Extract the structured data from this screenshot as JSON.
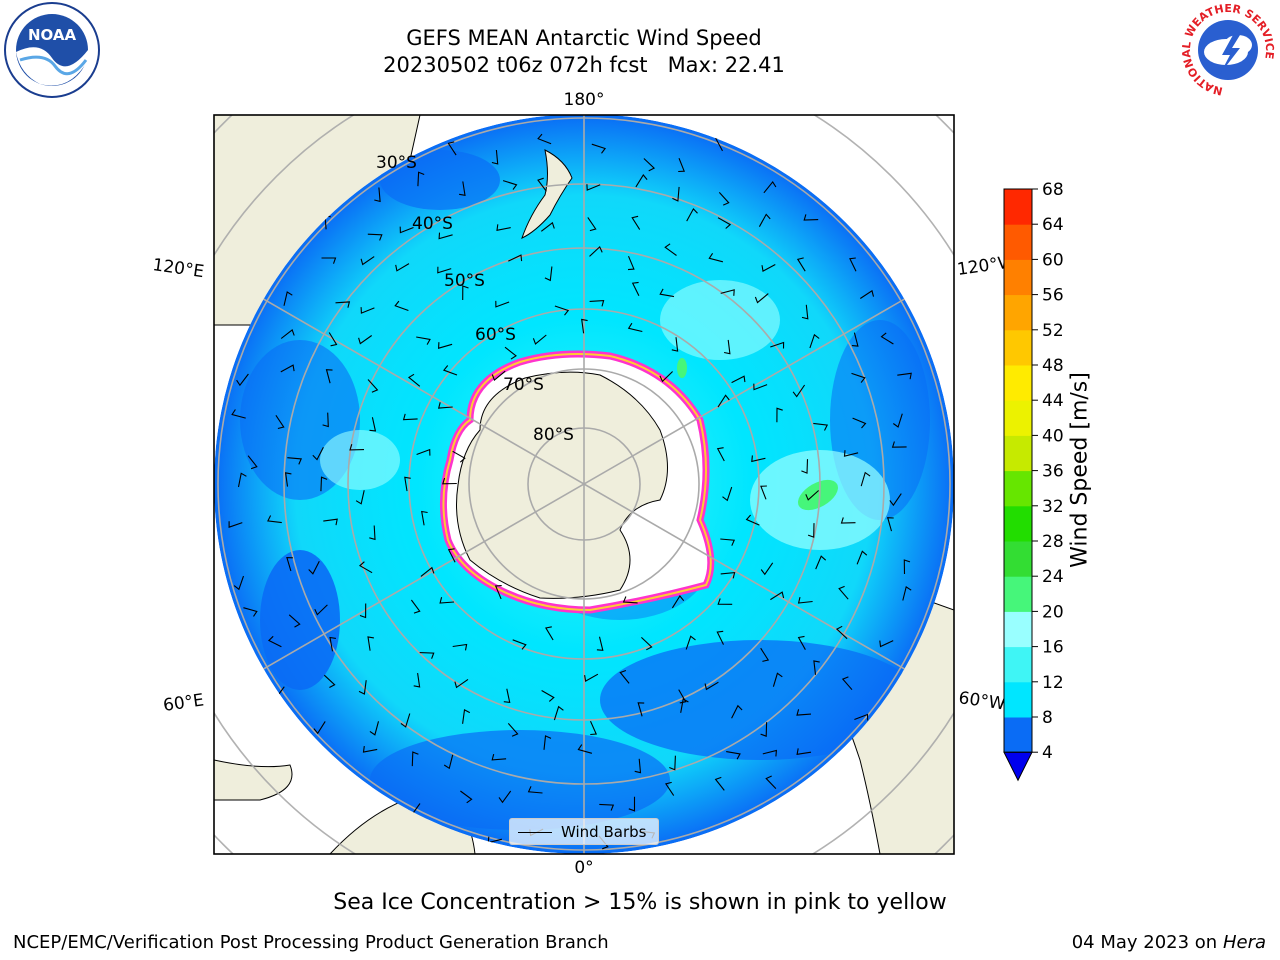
{
  "title": {
    "line1": "GEFS MEAN Antarctic Wind Speed",
    "line2": "20230502 t06z 072h fcst   Max: 22.41"
  },
  "map": {
    "projection": "south-polar-stereographic",
    "lat_labels": [
      "30°S",
      "40°S",
      "50°S",
      "60°S",
      "70°S",
      "80°S"
    ],
    "lon_labels": {
      "top": "180°",
      "bottom": "0°",
      "upper_left": "120°E",
      "upper_right": "120°W",
      "lower_left": "60°E",
      "lower_right": "60°W"
    },
    "colors": {
      "ocean_low": "#0a6cf5",
      "ocean_mid": "#00e6ff",
      "ocean_high": "#4dfafa",
      "land": "#efeedc",
      "sea_ice_edge": "#ff33cc",
      "sea_ice_inner": "#ffcc33"
    }
  },
  "legend": {
    "label": "Wind Barbs"
  },
  "colorbar": {
    "label": "Wind Speed [m/s]",
    "ticks": [
      "4",
      "8",
      "12",
      "16",
      "20",
      "24",
      "28",
      "32",
      "36",
      "40",
      "44",
      "48",
      "52",
      "56",
      "60",
      "64",
      "68"
    ],
    "colors": [
      "#0a6cf5",
      "#00e6ff",
      "#3ff5f5",
      "#99ffff",
      "#46f67a",
      "#33dd33",
      "#22dd00",
      "#66e600",
      "#c6ea00",
      "#ecf200",
      "#ffeb00",
      "#ffc800",
      "#ffa500",
      "#ff8000",
      "#ff5a00",
      "#ff2800"
    ],
    "under_color": "#0000ee"
  },
  "caption": "Sea Ice Concentration > 15% is shown in pink to yellow",
  "footer": {
    "left": "NCEP/EMC/Verification Post Processing Product Generation Branch",
    "right_date": "04 May 2023 on",
    "right_host": "Hera"
  },
  "logos": {
    "noaa": "NOAA",
    "nws_ring": "NATIONAL WEATHER SERVICE"
  }
}
